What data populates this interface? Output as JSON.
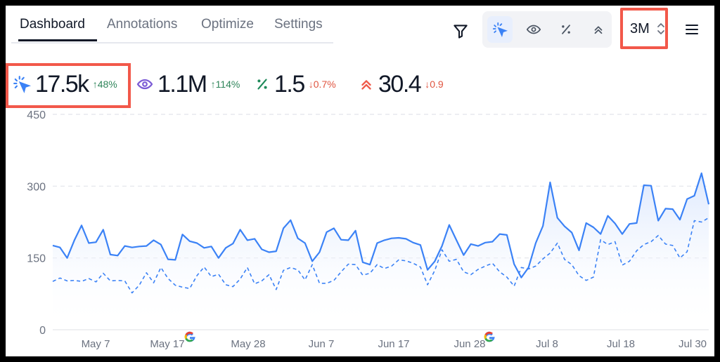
{
  "tabs": [
    "Dashboard",
    "Annotations",
    "Optimize",
    "Settings"
  ],
  "active_tab": "Dashboard",
  "toolbar": {
    "range_label": "3M",
    "toggles": [
      "clicks-icon",
      "eye-icon",
      "percent-icon",
      "position-icon"
    ],
    "active_toggle": "clicks-icon"
  },
  "metrics": [
    {
      "icon": "clicks-icon",
      "value": "17.5k",
      "delta": "↑48%",
      "direction": "up",
      "color": "#3b82f6"
    },
    {
      "icon": "eye-icon",
      "value": "1.1M",
      "delta": "↑114%",
      "direction": "up",
      "color": "#7c5cd6"
    },
    {
      "icon": "percent-icon",
      "value": "1.5",
      "delta": "↓0.7%",
      "direction": "down",
      "color": "#1f8a5a"
    },
    {
      "icon": "position-icon",
      "value": "30.4",
      "delta": "↓0.9",
      "direction": "down",
      "color": "#ef5a4a"
    }
  ],
  "chart_data": {
    "type": "line",
    "y_ticks": [
      "450",
      "300",
      "150",
      "0"
    ],
    "ylim": [
      0,
      450
    ],
    "x_tick_labels": [
      "May 7",
      "May 17",
      "May 28",
      "Jun 7",
      "Jun 17",
      "Jun 28",
      "Jul 8",
      "Jul 18",
      "Jul 30"
    ],
    "annotation_icons": [
      "google-icon",
      "google-icon"
    ],
    "series": [
      {
        "style": "solid",
        "color": "#3b82f6",
        "values": [
          176,
          172,
          150,
          187,
          218,
          181,
          183,
          209,
          157,
          155,
          175,
          172,
          174,
          175,
          187,
          178,
          147,
          146,
          199,
          185,
          181,
          171,
          174,
          150,
          171,
          180,
          209,
          187,
          190,
          168,
          162,
          164,
          212,
          229,
          191,
          181,
          143,
          162,
          204,
          212,
          188,
          187,
          207,
          141,
          136,
          181,
          187,
          191,
          192,
          190,
          182,
          177,
          125,
          143,
          175,
          219,
          187,
          156,
          179,
          175,
          182,
          184,
          200,
          198,
          137,
          109,
          130,
          181,
          217,
          308,
          234,
          216,
          203,
          166,
          223,
          214,
          200,
          238,
          222,
          200,
          221,
          223,
          302,
          301,
          228,
          253,
          252,
          230,
          273,
          280,
          327,
          262
        ]
      },
      {
        "style": "dashed",
        "color": "#3b82f6",
        "values": [
          101,
          108,
          102,
          103,
          101,
          107,
          100,
          118,
          102,
          103,
          102,
          77,
          93,
          119,
          98,
          130,
          107,
          93,
          89,
          86,
          113,
          131,
          111,
          116,
          94,
          90,
          106,
          130,
          96,
          102,
          115,
          84,
          124,
          130,
          125,
          104,
          136,
          97,
          97,
          103,
          121,
          137,
          136,
          114,
          118,
          136,
          128,
          133,
          146,
          144,
          139,
          131,
          94,
          124,
          167,
          143,
          147,
          121,
          115,
          126,
          133,
          139,
          121,
          110,
          91,
          130,
          127,
          133,
          148,
          160,
          181,
          147,
          136,
          113,
          103,
          110,
          188,
          178,
          184,
          135,
          143,
          165,
          178,
          184,
          197,
          179,
          176,
          150,
          163,
          228,
          225,
          234
        ]
      }
    ]
  }
}
